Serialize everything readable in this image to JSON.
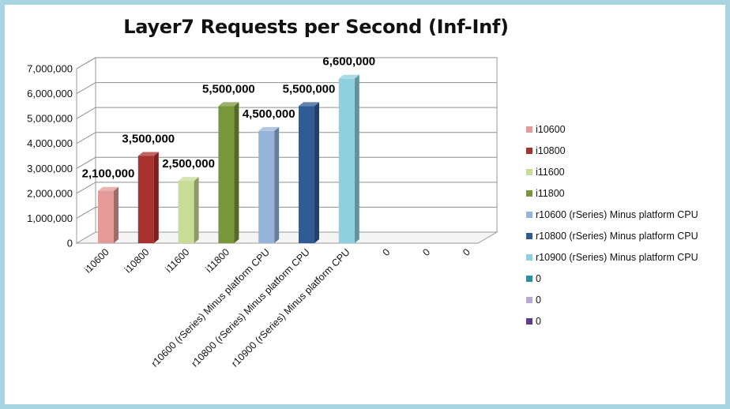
{
  "chart_data": {
    "type": "bar",
    "title": "Layer7 Requests per Second (Inf-Inf)",
    "xlabel": "",
    "ylabel": "",
    "ylim": [
      0,
      7000000
    ],
    "yticks": [
      "0",
      "1,000,000",
      "2,000,000",
      "3,000,000",
      "4,000,000",
      "5,000,000",
      "6,000,000",
      "7,000,000"
    ],
    "categories": [
      "i10600",
      "i10800",
      "i11600",
      "i11800",
      "r10600 (rSeries) Minus platform CPU",
      "r10800 (rSeries) Minus platform CPU",
      "r10900 (rSeries) Minus platform CPU",
      "0",
      "0",
      "0"
    ],
    "values": [
      2100000,
      3500000,
      2500000,
      5500000,
      4500000,
      5500000,
      6600000,
      0,
      0,
      0
    ],
    "data_labels": [
      "2,100,000",
      "3,500,000",
      "2,500,000",
      "5,500,000",
      "4,500,000",
      "5,500,000",
      "6,600,000",
      "",
      "",
      ""
    ],
    "colors": [
      "#e39a98",
      "#a8312f",
      "#c8dc98",
      "#77973a",
      "#95b3d8",
      "#305b94",
      "#8ed0de",
      "#2a8fa0",
      "#b9a6d4",
      "#5d3d8c"
    ],
    "grid": true,
    "legend_position": "right",
    "legend": [
      {
        "label": "i10600",
        "color": "#e39a98"
      },
      {
        "label": "i10800",
        "color": "#a8312f"
      },
      {
        "label": "i11600",
        "color": "#c8dc98"
      },
      {
        "label": "i11800",
        "color": "#77973a"
      },
      {
        "label": "r10600 (rSeries) Minus platform CPU",
        "color": "#95b3d8"
      },
      {
        "label": "r10800 (rSeries) Minus platform CPU",
        "color": "#305b94"
      },
      {
        "label": "r10900 (rSeries) Minus platform CPU",
        "color": "#8ed0de"
      },
      {
        "label": "0",
        "color": "#2a8fa0"
      },
      {
        "label": "0",
        "color": "#b9a6d4"
      },
      {
        "label": "0",
        "color": "#5d3d8c"
      }
    ]
  }
}
